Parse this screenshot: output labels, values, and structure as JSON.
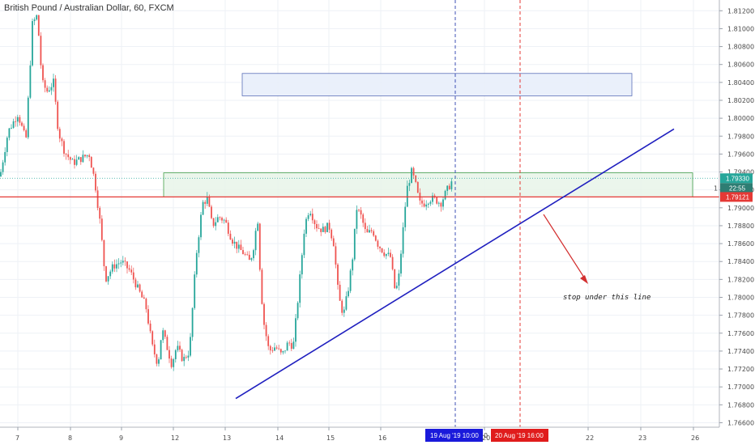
{
  "title": "British Pound / Australian Dollar, 60, FXCM",
  "annotation": "stop under this line",
  "colors": {
    "up": "#26a69a",
    "down": "#ef5350",
    "trendline": "#1f1fbf",
    "resistance": "#e53935",
    "zone_fill": "#e8f5e9",
    "zone_border": "#43a047",
    "target_fill": "#e8eefb",
    "target_border": "#5a6fb8",
    "arrow": "#d32f2f",
    "vline_blue": "#3f51b5",
    "vline_red": "#e53935",
    "grid": "#eef1f6"
  },
  "price_axis": {
    "ticks": [
      "1.81200",
      "1.81000",
      "1.80800",
      "1.80600",
      "1.80400",
      "1.80200",
      "1.80000",
      "1.79800",
      "1.79600",
      "1.79400",
      "1.79200",
      "1.79000",
      "1.78800",
      "1.78600",
      "1.78400",
      "1.78200",
      "1.78000",
      "1.77800",
      "1.77600",
      "1.77400",
      "1.77200",
      "1.77000",
      "1.76800",
      "1.76600"
    ],
    "current_price": "1.79330",
    "countdown": "22:55",
    "level_price": "1.79121",
    "hidden_fragment": "1"
  },
  "time_axis": {
    "ticks": [
      "7",
      "8",
      "9",
      "12",
      "13",
      "14",
      "15",
      "16",
      "20",
      "22",
      "23",
      "26"
    ],
    "cursor_blue": "19 Aug '19   10:00",
    "cursor_red": "20 Aug '19   16:00",
    "fragment": "0"
  },
  "chart_data": {
    "type": "candlestick",
    "title": "British Pound / Australian Dollar, 60, FXCM",
    "timeframe": "60",
    "ylim": [
      1.7655,
      1.8132
    ],
    "y_ticks": [
      1.812,
      1.81,
      1.808,
      1.806,
      1.804,
      1.802,
      1.8,
      1.798,
      1.796,
      1.794,
      1.792,
      1.79,
      1.788,
      1.786,
      1.784,
      1.782,
      1.78,
      1.778,
      1.776,
      1.774,
      1.772,
      1.77,
      1.768,
      1.766
    ],
    "x_ticks": [
      "7",
      "8",
      "9",
      "12",
      "13",
      "14",
      "15",
      "16",
      "20",
      "22",
      "23",
      "26"
    ],
    "price_path": [
      [
        0,
        1.7935
      ],
      [
        10,
        1.7985
      ],
      [
        22,
        1.8005
      ],
      [
        32,
        1.7975
      ],
      [
        40,
        1.8105
      ],
      [
        46,
        1.8115
      ],
      [
        52,
        1.804
      ],
      [
        58,
        1.803
      ],
      [
        66,
        1.804
      ],
      [
        72,
        1.7985
      ],
      [
        80,
        1.7962
      ],
      [
        90,
        1.795
      ],
      [
        100,
        1.7955
      ],
      [
        110,
        1.796
      ],
      [
        117,
        1.793
      ],
      [
        124,
        1.788
      ],
      [
        130,
        1.782
      ],
      [
        140,
        1.7835
      ],
      [
        150,
        1.784
      ],
      [
        160,
        1.783
      ],
      [
        170,
        1.781
      ],
      [
        180,
        1.779
      ],
      [
        188,
        1.7745
      ],
      [
        195,
        1.7725
      ],
      [
        200,
        1.7765
      ],
      [
        206,
        1.7745
      ],
      [
        212,
        1.7725
      ],
      [
        218,
        1.7745
      ],
      [
        226,
        1.773
      ],
      [
        234,
        1.774
      ],
      [
        242,
        1.7845
      ],
      [
        250,
        1.7905
      ],
      [
        256,
        1.791
      ],
      [
        262,
        1.788
      ],
      [
        270,
        1.789
      ],
      [
        278,
        1.7885
      ],
      [
        286,
        1.7865
      ],
      [
        294,
        1.7855
      ],
      [
        300,
        1.785
      ],
      [
        308,
        1.784
      ],
      [
        312,
        1.785
      ],
      [
        318,
        1.789
      ],
      [
        322,
        1.781
      ],
      [
        326,
        1.777
      ],
      [
        332,
        1.774
      ],
      [
        340,
        1.7745
      ],
      [
        348,
        1.7735
      ],
      [
        356,
        1.775
      ],
      [
        362,
        1.7745
      ],
      [
        368,
        1.78
      ],
      [
        376,
        1.788
      ],
      [
        382,
        1.79
      ],
      [
        390,
        1.788
      ],
      [
        398,
        1.7875
      ],
      [
        406,
        1.788
      ],
      [
        412,
        1.786
      ],
      [
        418,
        1.78
      ],
      [
        424,
        1.778
      ],
      [
        430,
        1.781
      ],
      [
        436,
        1.785
      ],
      [
        440,
        1.79
      ],
      [
        446,
        1.789
      ],
      [
        452,
        1.787
      ],
      [
        460,
        1.7875
      ],
      [
        466,
        1.786
      ],
      [
        474,
        1.785
      ],
      [
        482,
        1.7845
      ],
      [
        488,
        1.7805
      ],
      [
        492,
        1.782
      ],
      [
        498,
        1.788
      ],
      [
        502,
        1.792
      ],
      [
        508,
        1.794
      ],
      [
        512,
        1.793
      ],
      [
        518,
        1.7905
      ],
      [
        524,
        1.7905
      ],
      [
        530,
        1.791
      ],
      [
        536,
        1.791
      ],
      [
        544,
        1.7905
      ],
      [
        552,
        1.792
      ],
      [
        560,
        1.7933
      ]
    ],
    "resistance_level": 1.79121,
    "current_price": 1.7933,
    "zones": [
      {
        "label": "",
        "y_low": 1.79121,
        "y_high": 1.7939,
        "x_from_col": 202,
        "x_to_col": 855
      },
      {
        "label": "",
        "y_low": 1.8025,
        "y_high": 1.805,
        "x_from_col": 299,
        "x_to_col": 780
      }
    ],
    "trendline": {
      "from": [
        291,
        1.7687
      ],
      "to": [
        832,
        1.7988
      ]
    },
    "vertical_markers": [
      "19 Aug '19 10:00",
      "20 Aug '19 16:00"
    ]
  }
}
